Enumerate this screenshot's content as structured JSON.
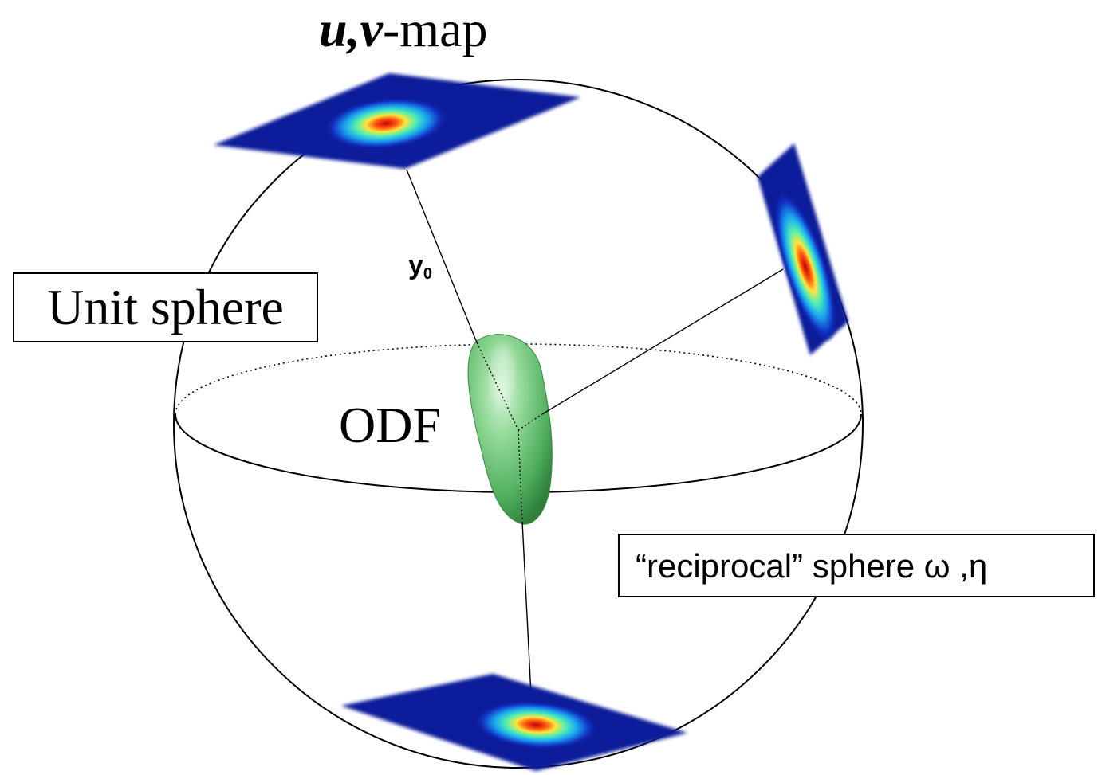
{
  "title": {
    "uv": "u,v",
    "rest": "-map"
  },
  "labels": {
    "unit_sphere": "Unit sphere",
    "reciprocal_sphere": "“reciprocal” sphere ω ,η",
    "odf": "ODF",
    "y_symbol": "y",
    "y_subscript": "0"
  },
  "colors": {
    "map_background": "#0a1f9a",
    "map_mid": "#17c8e8",
    "map_peak": "#d81010",
    "odf_surface": "#5fbf6e",
    "line": "#000000"
  }
}
